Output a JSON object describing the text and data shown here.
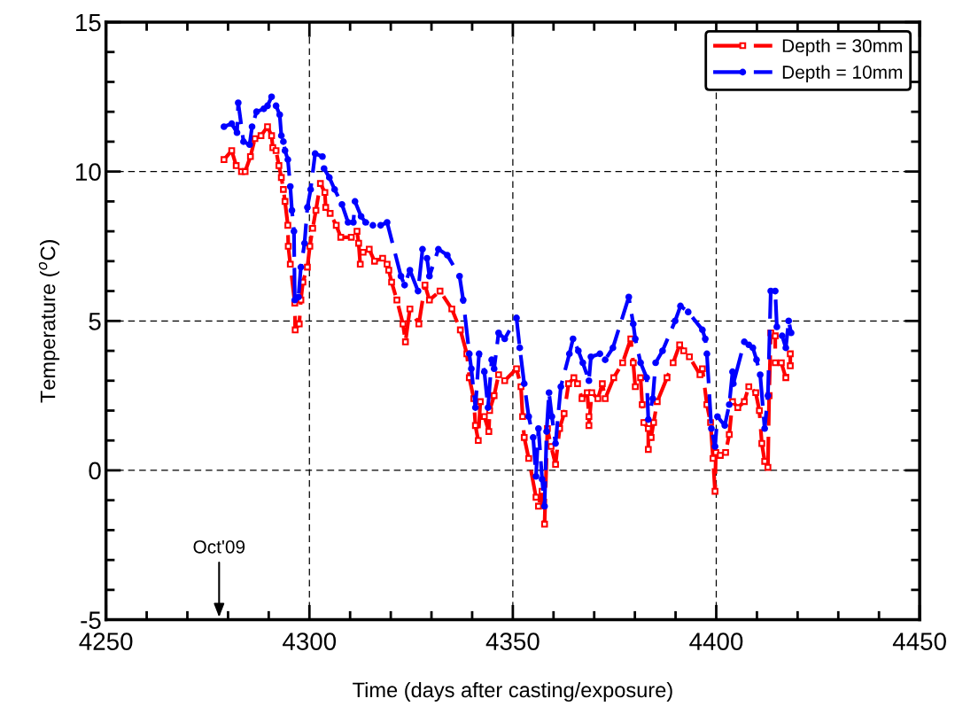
{
  "chart_data": {
    "type": "line",
    "xlabel": "Time (days after casting/exposure)",
    "ylabel": "Temperature ($^{o}$C)",
    "xlim": [
      4250,
      4450
    ],
    "xticks": [
      4250,
      4300,
      4350,
      4400,
      4450
    ],
    "ylim": [
      -5,
      15
    ],
    "yticks": [
      -5,
      0,
      5,
      10,
      15
    ],
    "grid": true,
    "legend": "top right",
    "line_style": "dashed",
    "annotations": [
      "Oct'09"
    ],
    "series": [
      {
        "name": "Depth = 30mm",
        "color": "#ff0000",
        "marker": "square",
        "x": [
          4279.0,
          4280.9,
          4282.0,
          4283.3,
          4284.2,
          4285.5,
          4286.6,
          4288.1,
          4289.7,
          4290.7,
          4291.0,
          4291.8,
          4292.5,
          4293.1,
          4293.6,
          4294.0,
          4294.7,
          4294.8,
          4295.3,
          4296.4,
          4296.5,
          4297.5,
          4297.9,
          4298.4,
          4299.5,
          4300.1,
          4300.8,
          4301.6,
          4302.7,
          4303.8,
          4304.0,
          4305.1,
          4306.6,
          4307.7,
          4310.3,
          4311.7,
          4312.1,
          4312.5,
          4313.2,
          4314.7,
          4316.0,
          4318.0,
          4319.1,
          4319.5,
          4320.2,
          4321.5,
          4323.0,
          4323.6,
          4324.7,
          4326.9,
          4328.4,
          4329.5,
          4332.1,
          4335.0,
          4337.1,
          4338.7,
          4339.3,
          4340.4,
          4340.8,
          4341.5,
          4342.0,
          4343.0,
          4344.1,
          4344.3,
          4345.4,
          4346.5,
          4348.0,
          4350.9,
          4352.0,
          4352.4,
          4352.8,
          4353.9,
          4355.7,
          4356.3,
          4357.2,
          4357.8,
          4358.5,
          4359.4,
          4360.5,
          4361.5,
          4362.6,
          4363.7,
          4365.0,
          4365.9,
          4367.0,
          4368.3,
          4368.7,
          4368.7,
          4369.4,
          4370.9,
          4372.0,
          4372.7,
          4374.8,
          4377.0,
          4379.0,
          4379.6,
          4380.1,
          4381.4,
          4381.8,
          4382.2,
          4383.3,
          4383.3,
          4384.0,
          4384.6,
          4385.5,
          4387.9,
          4389.4,
          4391.0,
          4392.0,
          4393.4,
          4396.0,
          4396.6,
          4397.7,
          4398.6,
          4399.2,
          4399.7,
          4399.9,
          4401.0,
          4402.3,
          4403.2,
          4404.0,
          4405.3,
          4406.9,
          4408.0,
          4409.7,
          4410.6,
          4411.2,
          4411.9,
          4412.7,
          4413.0,
          4413.4,
          4414.5,
          4414.5,
          4416.0,
          4417.1,
          4418.2,
          4418.2
        ],
        "values": [
          10.4,
          10.7,
          10.2,
          10.0,
          10.0,
          10.5,
          11.1,
          11.2,
          11.5,
          11.2,
          10.8,
          10.7,
          10.2,
          9.8,
          9.4,
          9.0,
          8.2,
          7.5,
          6.9,
          5.6,
          4.7,
          4.9,
          5.7,
          6.3,
          6.8,
          7.5,
          8.1,
          8.7,
          9.6,
          9.3,
          8.8,
          8.6,
          8.2,
          7.8,
          7.8,
          8.0,
          7.6,
          6.9,
          7.3,
          7.4,
          7.0,
          7.1,
          6.9,
          6.7,
          6.3,
          5.7,
          4.9,
          4.3,
          5.4,
          4.9,
          6.2,
          5.7,
          6.0,
          5.4,
          4.7,
          3.9,
          3.1,
          2.4,
          1.5,
          1.0,
          2.3,
          1.8,
          1.3,
          2.0,
          2.5,
          3.2,
          3.0,
          3.4,
          2.8,
          1.8,
          1.1,
          0.4,
          -0.9,
          -1.2,
          -0.7,
          -1.8,
          1.4,
          0.8,
          0.2,
          1.4,
          1.9,
          2.9,
          3.1,
          2.9,
          2.4,
          2.6,
          1.8,
          1.5,
          2.6,
          2.4,
          2.9,
          2.4,
          3.1,
          3.6,
          4.4,
          3.6,
          2.8,
          3.1,
          2.2,
          1.6,
          1.4,
          0.7,
          1.1,
          1.6,
          2.3,
          3.1,
          3.6,
          4.2,
          4.0,
          3.8,
          3.2,
          3.4,
          2.2,
          1.6,
          0.4,
          -0.7,
          0.6,
          0.5,
          0.6,
          1.2,
          2.3,
          2.1,
          2.3,
          2.8,
          2.6,
          2.0,
          0.9,
          0.3,
          0.1,
          2.5,
          4.6,
          4.5,
          3.6,
          3.6,
          3.1,
          3.5,
          3.9
        ]
      },
      {
        "name": "Depth = 10mm",
        "color": "#0000ff",
        "marker": "circle",
        "x": [
          4279.0,
          4280.9,
          4282.2,
          4282.5,
          4283.8,
          4285.3,
          4285.9,
          4287.0,
          4288.8,
          4289.7,
          4290.7,
          4291.8,
          4292.7,
          4293.1,
          4293.6,
          4294.0,
          4294.7,
          4295.3,
          4295.7,
          4296.2,
          4296.4,
          4297.3,
          4297.9,
          4298.8,
          4299.5,
          4300.3,
          4301.4,
          4303.2,
          4303.6,
          4304.9,
          4306.2,
          4308.0,
          4309.5,
          4310.8,
          4311.2,
          4312.7,
          4313.8,
          4315.6,
          4317.5,
          4319.1,
          4322.5,
          4323.4,
          4324.7,
          4326.7,
          4327.8,
          4328.9,
          4329.5,
          4331.7,
          4333.9,
          4336.9,
          4337.8,
          4339.3,
          4339.8,
          4340.8,
          4341.7,
          4343.0,
          4343.9,
          4344.8,
          4345.4,
          4346.5,
          4348.0,
          4350.9,
          4351.7,
          4352.8,
          4353.9,
          4355.0,
          4355.7,
          4356.3,
          4357.2,
          4357.8,
          4358.3,
          4358.9,
          4359.6,
          4360.5,
          4361.8,
          4363.9,
          4364.8,
          4366.1,
          4367.2,
          4368.7,
          4369.2,
          4371.4,
          4372.7,
          4374.6,
          4378.5,
          4379.6,
          4380.1,
          4381.4,
          4382.9,
          4383.3,
          4384.4,
          4385.1,
          4386.8,
          4389.9,
          4391.2,
          4393.1,
          4396.6,
          4397.3,
          4397.7,
          4398.8,
          4399.7,
          4400.3,
          4402.1,
          4403.2,
          4404.0,
          4404.2,
          4406.9,
          4408.0,
          4409.0,
          4409.9,
          4410.8,
          4411.9,
          4412.7,
          4413.4,
          4414.5,
          4414.9,
          4416.2,
          4417.1,
          4417.8,
          4418.4
        ],
        "values": [
          11.5,
          11.6,
          11.3,
          12.3,
          11.0,
          10.9,
          11.5,
          12.0,
          12.1,
          12.2,
          12.5,
          12.2,
          11.9,
          11.2,
          11.0,
          10.7,
          10.4,
          9.5,
          8.7,
          8.0,
          5.7,
          5.8,
          6.8,
          7.6,
          8.8,
          9.4,
          10.6,
          10.5,
          10.1,
          9.8,
          9.4,
          8.9,
          8.3,
          8.3,
          9.0,
          8.5,
          8.3,
          8.2,
          8.2,
          8.3,
          6.5,
          6.2,
          6.7,
          6.0,
          7.4,
          7.1,
          6.5,
          7.4,
          7.2,
          6.5,
          5.7,
          3.9,
          3.4,
          2.1,
          3.9,
          3.3,
          2.1,
          3.7,
          3.4,
          4.6,
          4.4,
          5.1,
          4.1,
          2.9,
          1.8,
          1.1,
          -0.2,
          1.4,
          -0.3,
          -1.2,
          1.3,
          2.6,
          1.8,
          0.9,
          2.8,
          3.9,
          4.4,
          4.0,
          3.6,
          3.0,
          3.8,
          3.9,
          3.7,
          4.1,
          5.8,
          4.9,
          4.4,
          3.6,
          3.1,
          1.7,
          2.4,
          3.6,
          4.0,
          5.0,
          5.5,
          5.3,
          4.7,
          4.4,
          3.9,
          1.4,
          0.8,
          1.8,
          1.5,
          2.2,
          3.3,
          2.9,
          4.3,
          4.2,
          4.1,
          3.7,
          3.2,
          1.4,
          2.5,
          6.0,
          6.0,
          4.8,
          4.5,
          4.1,
          5.0,
          4.6
        ]
      }
    ]
  }
}
